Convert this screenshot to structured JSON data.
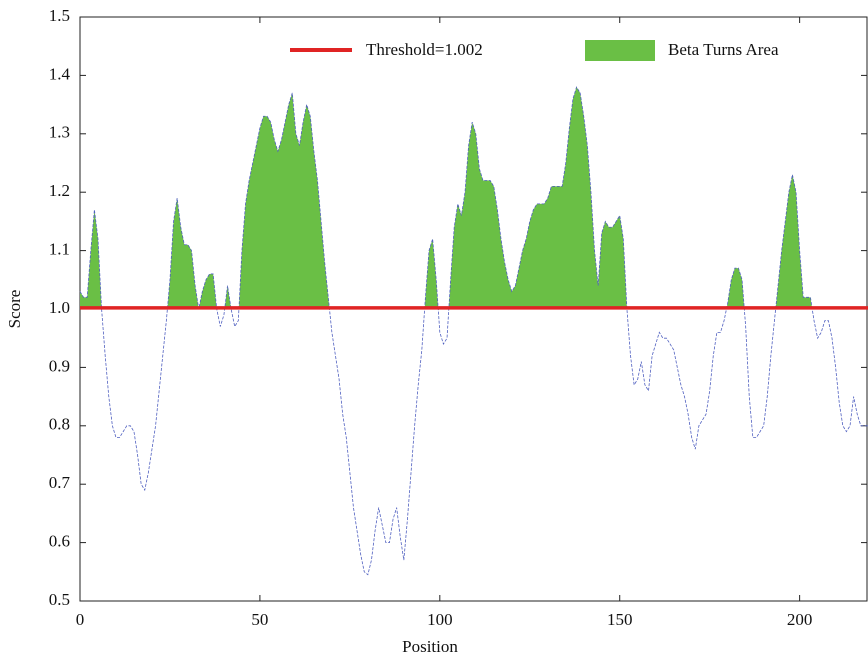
{
  "chart_data": {
    "type": "line",
    "xlabel": "Position",
    "ylabel": "Score",
    "xlim": [
      0,
      219
    ],
    "ylim": [
      0.5,
      1.5
    ],
    "xticks": [
      0,
      50,
      100,
      150,
      200
    ],
    "yticks": [
      0.5,
      0.6,
      0.7,
      0.8,
      0.9,
      {
        "value": 1.0,
        "label": "1.0"
      },
      1.1,
      1.2,
      1.3,
      1.4,
      1.5
    ],
    "line_color": "#5060c0",
    "threshold": {
      "name": "Threshold=1.002",
      "value": 1.002,
      "color": "#e02424"
    },
    "x": [
      0,
      1,
      2,
      3,
      4,
      5,
      6,
      7,
      8,
      9,
      10,
      11,
      12,
      13,
      14,
      15,
      16,
      17,
      18,
      19,
      20,
      21,
      22,
      23,
      24,
      25,
      26,
      27,
      28,
      29,
      30,
      31,
      32,
      33,
      34,
      35,
      36,
      37,
      38,
      39,
      40,
      41,
      42,
      43,
      44,
      45,
      46,
      47,
      48,
      49,
      50,
      51,
      52,
      53,
      54,
      55,
      56,
      57,
      58,
      59,
      60,
      61,
      62,
      63,
      64,
      65,
      66,
      67,
      68,
      69,
      70,
      71,
      72,
      73,
      74,
      75,
      76,
      77,
      78,
      79,
      80,
      81,
      82,
      83,
      84,
      85,
      86,
      87,
      88,
      89,
      90,
      91,
      92,
      93,
      94,
      95,
      96,
      97,
      98,
      99,
      100,
      101,
      102,
      103,
      104,
      105,
      106,
      107,
      108,
      109,
      110,
      111,
      112,
      113,
      114,
      115,
      116,
      117,
      118,
      119,
      120,
      121,
      122,
      123,
      124,
      125,
      126,
      127,
      128,
      129,
      130,
      131,
      132,
      133,
      134,
      135,
      136,
      137,
      138,
      139,
      140,
      141,
      142,
      143,
      144,
      145,
      146,
      147,
      148,
      149,
      150,
      151,
      152,
      153,
      154,
      155,
      156,
      157,
      158,
      159,
      160,
      161,
      162,
      163,
      164,
      165,
      166,
      167,
      168,
      169,
      170,
      171,
      172,
      173,
      174,
      175,
      176,
      177,
      178,
      179,
      180,
      181,
      182,
      183,
      184,
      185,
      186,
      187,
      188,
      189,
      190,
      191,
      192,
      193,
      194,
      195,
      196,
      197,
      198,
      199,
      200,
      201,
      202,
      203,
      204,
      205,
      206,
      207,
      208,
      209,
      210,
      211,
      212,
      213,
      214,
      215,
      216,
      217,
      218,
      219
    ],
    "series": [
      {
        "name": "Beta Turns Area",
        "color": "#6abf45",
        "values": [
          1.03,
          1.02,
          1.02,
          1.1,
          1.17,
          1.12,
          1.0,
          0.92,
          0.85,
          0.8,
          0.78,
          0.78,
          0.79,
          0.8,
          0.8,
          0.79,
          0.75,
          0.7,
          0.69,
          0.72,
          0.76,
          0.8,
          0.86,
          0.92,
          0.98,
          1.05,
          1.15,
          1.19,
          1.14,
          1.11,
          1.11,
          1.1,
          1.04,
          1.0,
          1.03,
          1.05,
          1.06,
          1.06,
          1.0,
          0.97,
          0.99,
          1.04,
          1.0,
          0.97,
          0.98,
          1.1,
          1.18,
          1.22,
          1.25,
          1.28,
          1.31,
          1.33,
          1.33,
          1.32,
          1.29,
          1.27,
          1.29,
          1.32,
          1.35,
          1.37,
          1.3,
          1.28,
          1.32,
          1.35,
          1.33,
          1.27,
          1.22,
          1.15,
          1.08,
          1.02,
          0.96,
          0.92,
          0.88,
          0.82,
          0.78,
          0.72,
          0.66,
          0.62,
          0.58,
          0.55,
          0.545,
          0.57,
          0.62,
          0.66,
          0.63,
          0.6,
          0.6,
          0.64,
          0.66,
          0.61,
          0.57,
          0.64,
          0.72,
          0.8,
          0.87,
          0.93,
          1.02,
          1.1,
          1.12,
          1.05,
          0.96,
          0.94,
          0.95,
          1.05,
          1.14,
          1.18,
          1.16,
          1.2,
          1.28,
          1.32,
          1.3,
          1.24,
          1.22,
          1.22,
          1.22,
          1.21,
          1.17,
          1.12,
          1.08,
          1.05,
          1.03,
          1.04,
          1.07,
          1.1,
          1.12,
          1.15,
          1.17,
          1.18,
          1.18,
          1.18,
          1.19,
          1.21,
          1.21,
          1.21,
          1.21,
          1.25,
          1.31,
          1.36,
          1.38,
          1.37,
          1.33,
          1.28,
          1.2,
          1.1,
          1.04,
          1.13,
          1.15,
          1.14,
          1.14,
          1.15,
          1.16,
          1.12,
          1.0,
          0.92,
          0.87,
          0.88,
          0.91,
          0.87,
          0.86,
          0.92,
          0.94,
          0.96,
          0.95,
          0.95,
          0.94,
          0.93,
          0.9,
          0.87,
          0.85,
          0.82,
          0.78,
          0.76,
          0.8,
          0.81,
          0.82,
          0.86,
          0.92,
          0.96,
          0.96,
          0.98,
          1.01,
          1.05,
          1.07,
          1.07,
          1.05,
          0.97,
          0.85,
          0.78,
          0.78,
          0.79,
          0.8,
          0.85,
          0.92,
          0.98,
          1.04,
          1.1,
          1.15,
          1.2,
          1.23,
          1.2,
          1.1,
          1.02,
          1.02,
          1.02,
          0.98,
          0.95,
          0.96,
          0.98,
          0.98,
          0.95,
          0.9,
          0.84,
          0.8,
          0.79,
          0.8,
          0.85,
          0.82,
          0.8,
          0.8,
          0.8
        ]
      }
    ]
  }
}
